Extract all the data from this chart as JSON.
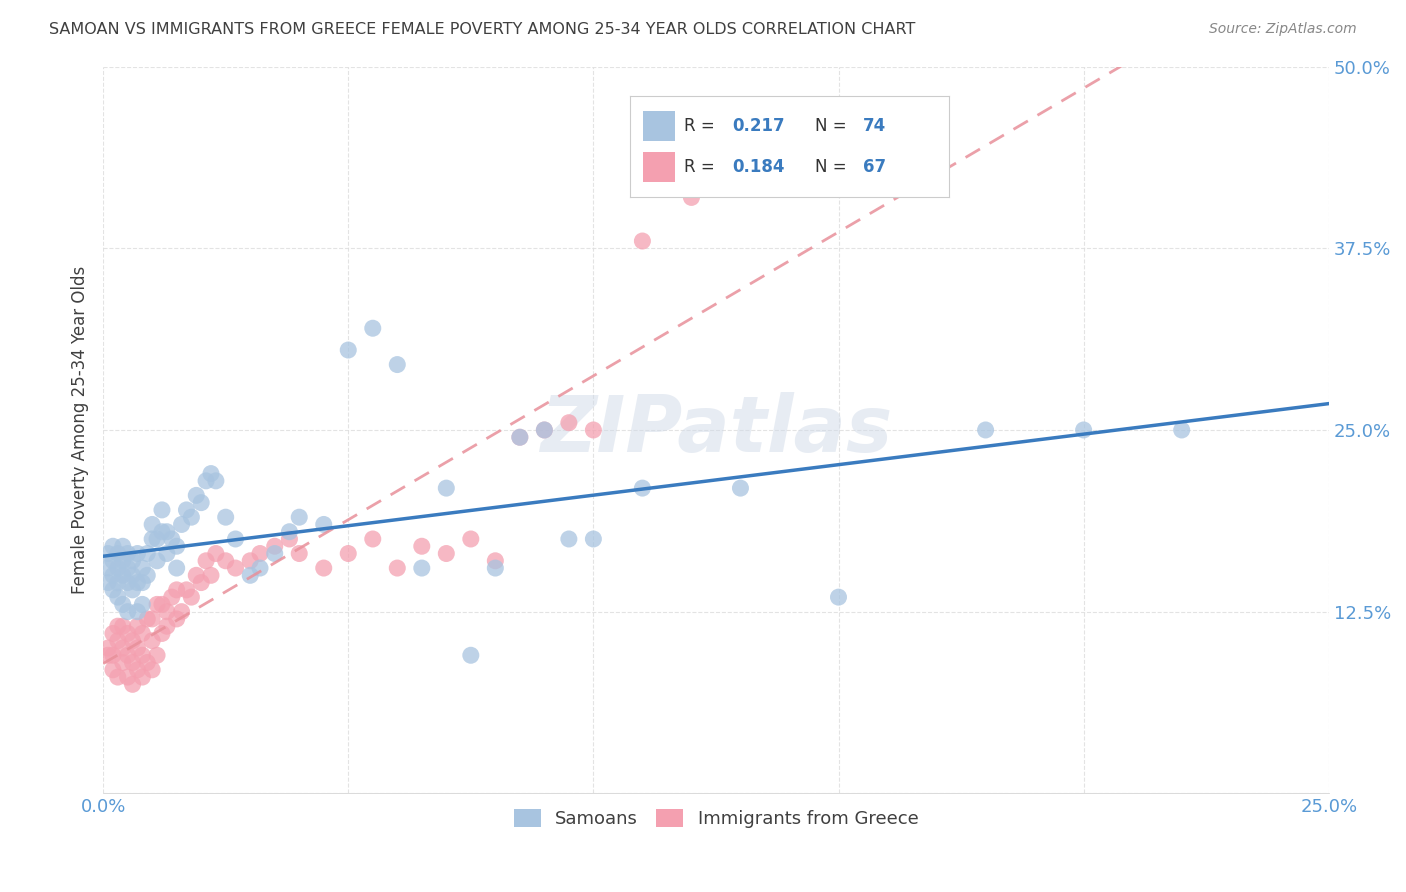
{
  "title": "SAMOAN VS IMMIGRANTS FROM GREECE FEMALE POVERTY AMONG 25-34 YEAR OLDS CORRELATION CHART",
  "source": "Source: ZipAtlas.com",
  "xlabel": "",
  "ylabel": "Female Poverty Among 25-34 Year Olds",
  "xlim": [
    0.0,
    0.25
  ],
  "ylim": [
    0.0,
    0.5
  ],
  "xticks": [
    0.0,
    0.05,
    0.1,
    0.15,
    0.2,
    0.25
  ],
  "xticklabels": [
    "0.0%",
    "",
    "",
    "",
    "",
    "25.0%"
  ],
  "yticks": [
    0.0,
    0.125,
    0.25,
    0.375,
    0.5
  ],
  "yticklabels": [
    "",
    "12.5%",
    "25.0%",
    "37.5%",
    "50.0%"
  ],
  "legend_labels": [
    "Samoans",
    "Immigrants from Greece"
  ],
  "blue_color": "#a8c4e0",
  "pink_color": "#f4a0b0",
  "blue_line_color": "#3a7bbf",
  "pink_line_color": "#e8909a",
  "R_blue": 0.217,
  "N_blue": 74,
  "R_pink": 0.184,
  "N_pink": 67,
  "watermark": "ZIPatlas",
  "background_color": "#ffffff",
  "grid_color": "#dddddd",
  "title_color": "#404040",
  "axis_label_color": "#404040",
  "tick_label_color": "#5a9ad5",
  "legend_R_color": "#3a7bbf",
  "samoans_x": [
    0.001,
    0.001,
    0.001,
    0.002,
    0.002,
    0.002,
    0.002,
    0.003,
    0.003,
    0.003,
    0.003,
    0.004,
    0.004,
    0.004,
    0.004,
    0.005,
    0.005,
    0.005,
    0.005,
    0.006,
    0.006,
    0.006,
    0.007,
    0.007,
    0.007,
    0.008,
    0.008,
    0.008,
    0.009,
    0.009,
    0.01,
    0.01,
    0.011,
    0.011,
    0.012,
    0.012,
    0.013,
    0.013,
    0.014,
    0.015,
    0.015,
    0.016,
    0.017,
    0.018,
    0.019,
    0.02,
    0.021,
    0.022,
    0.023,
    0.025,
    0.027,
    0.03,
    0.032,
    0.035,
    0.038,
    0.04,
    0.045,
    0.05,
    0.055,
    0.06,
    0.065,
    0.07,
    0.075,
    0.08,
    0.085,
    0.09,
    0.095,
    0.1,
    0.11,
    0.13,
    0.15,
    0.18,
    0.2,
    0.22
  ],
  "samoans_y": [
    0.155,
    0.165,
    0.145,
    0.14,
    0.16,
    0.15,
    0.17,
    0.135,
    0.165,
    0.155,
    0.145,
    0.13,
    0.16,
    0.17,
    0.15,
    0.125,
    0.145,
    0.165,
    0.155,
    0.14,
    0.16,
    0.15,
    0.125,
    0.145,
    0.165,
    0.13,
    0.155,
    0.145,
    0.165,
    0.15,
    0.175,
    0.185,
    0.16,
    0.175,
    0.18,
    0.195,
    0.165,
    0.18,
    0.175,
    0.155,
    0.17,
    0.185,
    0.195,
    0.19,
    0.205,
    0.2,
    0.215,
    0.22,
    0.215,
    0.19,
    0.175,
    0.15,
    0.155,
    0.165,
    0.18,
    0.19,
    0.185,
    0.305,
    0.32,
    0.295,
    0.155,
    0.21,
    0.095,
    0.155,
    0.245,
    0.25,
    0.175,
    0.175,
    0.21,
    0.21,
    0.135,
    0.25,
    0.25,
    0.25
  ],
  "greece_x": [
    0.001,
    0.001,
    0.002,
    0.002,
    0.002,
    0.003,
    0.003,
    0.003,
    0.004,
    0.004,
    0.004,
    0.005,
    0.005,
    0.005,
    0.006,
    0.006,
    0.006,
    0.007,
    0.007,
    0.007,
    0.008,
    0.008,
    0.008,
    0.009,
    0.009,
    0.01,
    0.01,
    0.01,
    0.011,
    0.011,
    0.012,
    0.012,
    0.013,
    0.013,
    0.014,
    0.015,
    0.015,
    0.016,
    0.017,
    0.018,
    0.019,
    0.02,
    0.021,
    0.022,
    0.023,
    0.025,
    0.027,
    0.03,
    0.032,
    0.035,
    0.038,
    0.04,
    0.045,
    0.05,
    0.055,
    0.06,
    0.065,
    0.07,
    0.075,
    0.08,
    0.085,
    0.09,
    0.095,
    0.1,
    0.11,
    0.12,
    0.13
  ],
  "greece_y": [
    0.095,
    0.1,
    0.085,
    0.11,
    0.095,
    0.08,
    0.105,
    0.115,
    0.09,
    0.1,
    0.115,
    0.08,
    0.095,
    0.11,
    0.075,
    0.09,
    0.105,
    0.085,
    0.1,
    0.115,
    0.08,
    0.095,
    0.11,
    0.09,
    0.12,
    0.085,
    0.105,
    0.12,
    0.095,
    0.13,
    0.11,
    0.13,
    0.115,
    0.125,
    0.135,
    0.12,
    0.14,
    0.125,
    0.14,
    0.135,
    0.15,
    0.145,
    0.16,
    0.15,
    0.165,
    0.16,
    0.155,
    0.16,
    0.165,
    0.17,
    0.175,
    0.165,
    0.155,
    0.165,
    0.175,
    0.155,
    0.17,
    0.165,
    0.175,
    0.16,
    0.245,
    0.25,
    0.255,
    0.25,
    0.38,
    0.41,
    0.43
  ]
}
